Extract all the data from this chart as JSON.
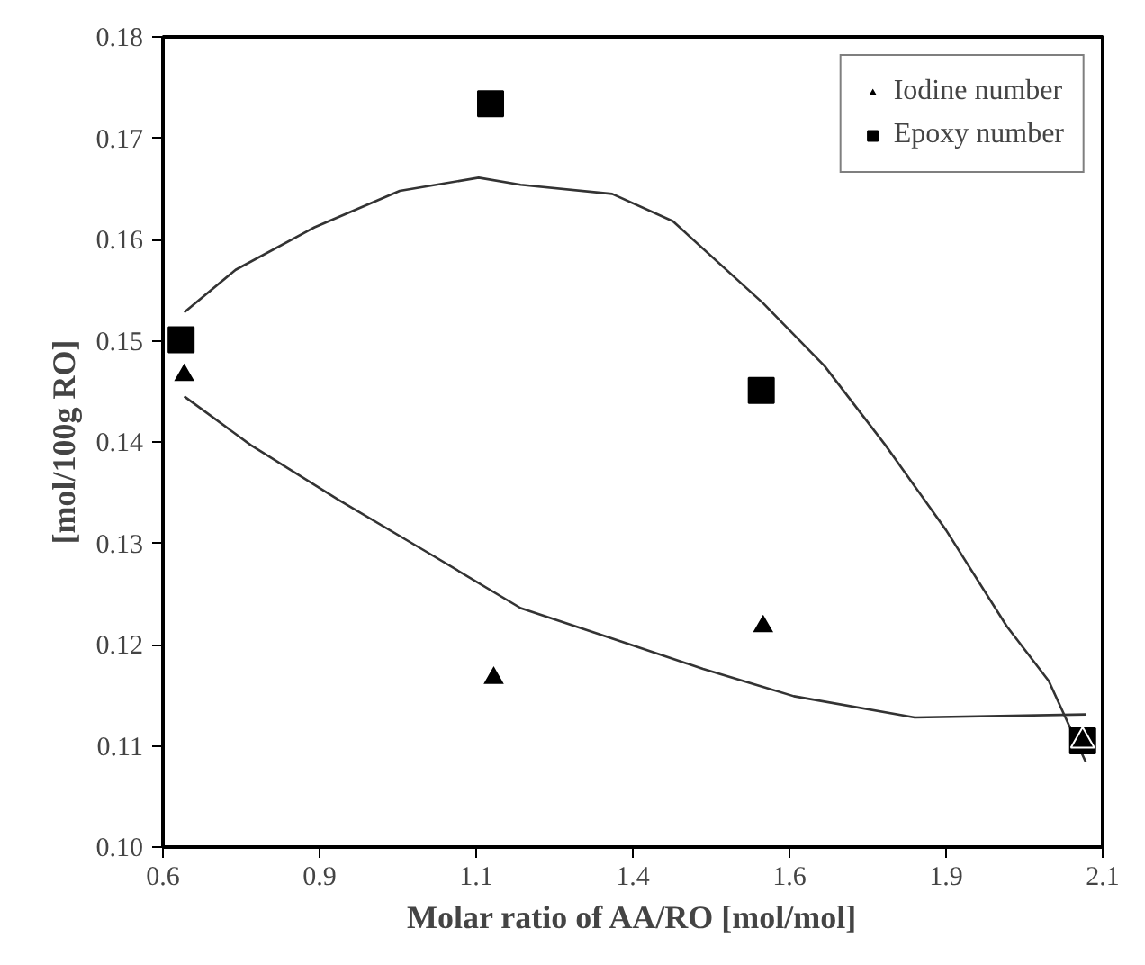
{
  "chart_data": {
    "type": "scatter",
    "xlabel": "Molar ratio of AA/RO [mol/mol]",
    "ylabel": "[mol/100g RO]",
    "xlim": [
      0.6,
      2.1
    ],
    "xticks": [
      0.6,
      {
        "value": 0.85,
        "label": "0.9"
      },
      1.1,
      {
        "value": 1.35,
        "label": "1.4"
      },
      1.6,
      {
        "value": 1.85,
        "label": "1.9"
      },
      2.1
    ],
    "ylim": [
      0.1,
      0.18
    ],
    "yticks": [
      {
        "value": 0.1,
        "label": "0.10"
      },
      0.11,
      0.12,
      0.13,
      0.14,
      0.15,
      0.16,
      0.17,
      0.18
    ],
    "grid": false,
    "legend": "top right",
    "series": [
      {
        "name": "Iodine number",
        "color": "#000000",
        "marker": "triangle",
        "x": [
          0.634,
          1.128,
          1.558,
          2.068
        ],
        "values": [
          0.1466,
          0.1167,
          0.1218,
          0.1105
        ]
      },
      {
        "name": "Epoxy number",
        "color": "#000000",
        "marker": "square",
        "x": [
          0.629,
          1.123,
          1.555,
          2.068
        ],
        "values": [
          0.1501,
          0.1734,
          0.1451,
          0.1105
        ]
      },
      {
        "type": "line",
        "color": "#333333",
        "x": [
          0.634,
          0.74,
          0.88,
          1.025,
          1.171,
          1.317,
          1.462,
          1.607,
          1.8,
          2.073
        ],
        "values": [
          0.1445,
          0.1397,
          0.1343,
          0.129,
          0.1236,
          0.1206,
          0.1176,
          0.1149,
          0.1128,
          0.1131
        ]
      },
      {
        "type": "line",
        "color": "#333333",
        "x": [
          0.634,
          0.716,
          0.842,
          0.978,
          1.104,
          1.171,
          1.317,
          1.414,
          1.558,
          1.656,
          1.753,
          1.85,
          1.947,
          2.014,
          2.073
        ],
        "values": [
          0.1528,
          0.157,
          0.1612,
          0.1648,
          0.1661,
          0.1654,
          0.1645,
          0.1618,
          0.1537,
          0.1475,
          0.1397,
          0.1313,
          0.1218,
          0.1164,
          0.1084
        ]
      }
    ]
  }
}
